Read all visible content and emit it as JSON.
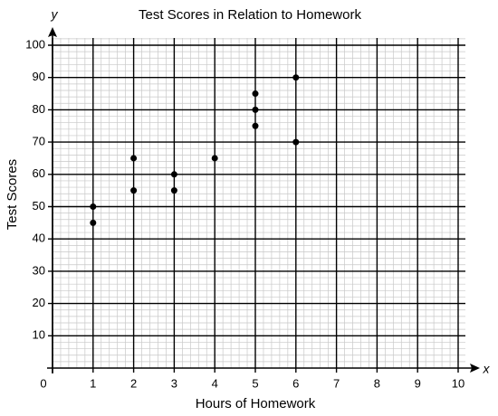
{
  "chart_data": {
    "type": "scatter",
    "title": "Test Scores in Relation to Homework",
    "x_label": "Hours of Homework",
    "y_label": "Test Scores",
    "x_symbol": "x",
    "y_symbol": "y",
    "x": [
      1,
      1,
      2,
      2,
      3,
      3,
      4,
      5,
      5,
      5,
      6,
      6
    ],
    "values": [
      50,
      45,
      65,
      55,
      60,
      55,
      65,
      85,
      80,
      75,
      90,
      70
    ],
    "color": "#000000",
    "xlim": [
      0,
      10
    ],
    "ylim": [
      0,
      100
    ],
    "xticks": [
      0,
      1,
      2,
      3,
      4,
      5,
      6,
      7,
      8,
      9,
      10
    ],
    "yticks": [
      10,
      20,
      30,
      40,
      50,
      60,
      70,
      80,
      90,
      100
    ],
    "grid": true,
    "minor_divisions": 5
  }
}
